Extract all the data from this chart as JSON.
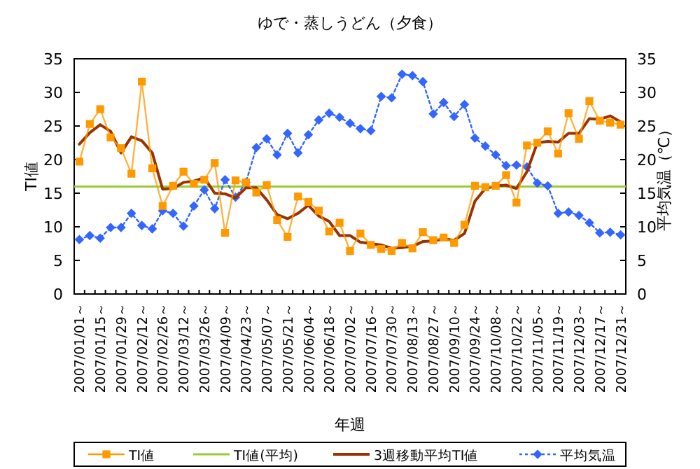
{
  "chart_data": {
    "type": "line",
    "title": "ゆで・蒸しうどん（夕食）",
    "xlabel": "年週",
    "ylabel": "TI値",
    "y2label": "平均気温（℃）",
    "categories": [
      "2007/01/01～",
      null,
      "2007/01/15～",
      null,
      "2007/01/29～",
      null,
      "2007/02/12～",
      null,
      "2007/02/26～",
      null,
      "2007/03/12～",
      null,
      "2007/03/26～",
      null,
      "2007/04/09～",
      null,
      "2007/04/23～",
      null,
      "2007/05/07～",
      null,
      "2007/05/21～",
      null,
      "2007/06/04～",
      null,
      "2007/06/18～",
      null,
      "2007/07/02～",
      null,
      "2007/07/16～",
      null,
      "2007/07/30～",
      null,
      "2007/08/13～",
      null,
      "2007/08/27～",
      null,
      "2007/09/10～",
      null,
      "2007/09/24～",
      null,
      "2007/10/08～",
      null,
      "2007/10/22～",
      null,
      "2007/11/05～",
      null,
      "2007/11/19～",
      null,
      "2007/12/03～",
      null,
      "2007/12/17～",
      null,
      "2007/12/31～"
    ],
    "series": [
      {
        "name": "TI値",
        "color": "#ff9900",
        "marker": "square",
        "values": [
          19.7,
          25.3,
          27.5,
          23.3,
          21.7,
          17.9,
          31.6,
          18.7,
          13.1,
          16.1,
          18.2,
          16.4,
          17.0,
          19.5,
          9.1,
          16.9,
          16.6,
          15.1,
          16.2,
          11.0,
          8.5,
          14.5,
          13.7,
          12.4,
          9.3,
          10.6,
          6.4,
          9.0,
          7.3,
          6.7,
          6.4,
          7.6,
          6.8,
          9.2,
          8.0,
          8.4,
          7.6,
          10.3,
          16.1,
          15.9,
          16.1,
          17.7,
          13.6,
          22.1,
          22.5,
          24.2,
          20.9,
          26.9,
          23.1,
          28.7,
          25.8,
          25.5,
          25.2
        ]
      },
      {
        "name": "3週移動平均TI値",
        "color": "#993300",
        "marker": "none",
        "values": [
          22.3,
          24.0,
          25.2,
          24.2,
          21.0,
          23.4,
          22.8,
          21.0,
          15.6,
          15.7,
          16.6,
          16.8,
          17.3,
          15.0,
          14.9,
          14.3,
          15.8,
          15.8,
          14.0,
          11.8,
          11.2,
          12.0,
          13.2,
          11.6,
          10.8,
          8.7,
          8.7,
          7.7,
          7.5,
          7.3,
          6.8,
          6.9,
          7.1,
          7.8,
          7.9,
          8.2,
          8.0,
          9.0,
          13.8,
          15.7,
          16.1,
          16.2,
          15.7,
          18.2,
          22.5,
          22.7,
          22.6,
          23.9,
          23.9,
          26.1,
          26.0,
          26.5,
          25.6
        ]
      },
      {
        "name": "平均気温",
        "color": "#3366ff",
        "marker": "diamond",
        "line_style": "dotted",
        "axis": "y2",
        "values": [
          8.1,
          8.7,
          8.3,
          9.9,
          9.9,
          12.0,
          10.2,
          9.7,
          12.4,
          12.0,
          10.1,
          13.1,
          15.5,
          12.7,
          17.0,
          14.4,
          16.6,
          21.8,
          23.1,
          20.7,
          23.9,
          21.0,
          23.7,
          25.9,
          26.9,
          26.3,
          25.4,
          24.6,
          24.3,
          29.4,
          29.2,
          32.7,
          32.5,
          31.6,
          26.8,
          28.5,
          26.4,
          28.2,
          23.2,
          22.0,
          20.7,
          19.1,
          19.2,
          18.9,
          16.5,
          16.1,
          12.0,
          12.2,
          11.7,
          10.6,
          9.1,
          9.2,
          8.8
        ]
      }
    ],
    "ref_lines": [
      {
        "axis": "y",
        "value": 16,
        "label": "TI値(平均)",
        "color": "#99cc33"
      }
    ],
    "ylim": [
      0,
      35
    ],
    "yticks": [
      0,
      5,
      10,
      15,
      20,
      25,
      30,
      35
    ],
    "y2lim": [
      0,
      35
    ],
    "y2ticks": [
      0,
      5,
      10,
      15,
      20,
      25,
      30,
      35
    ],
    "legend": "bottom"
  }
}
